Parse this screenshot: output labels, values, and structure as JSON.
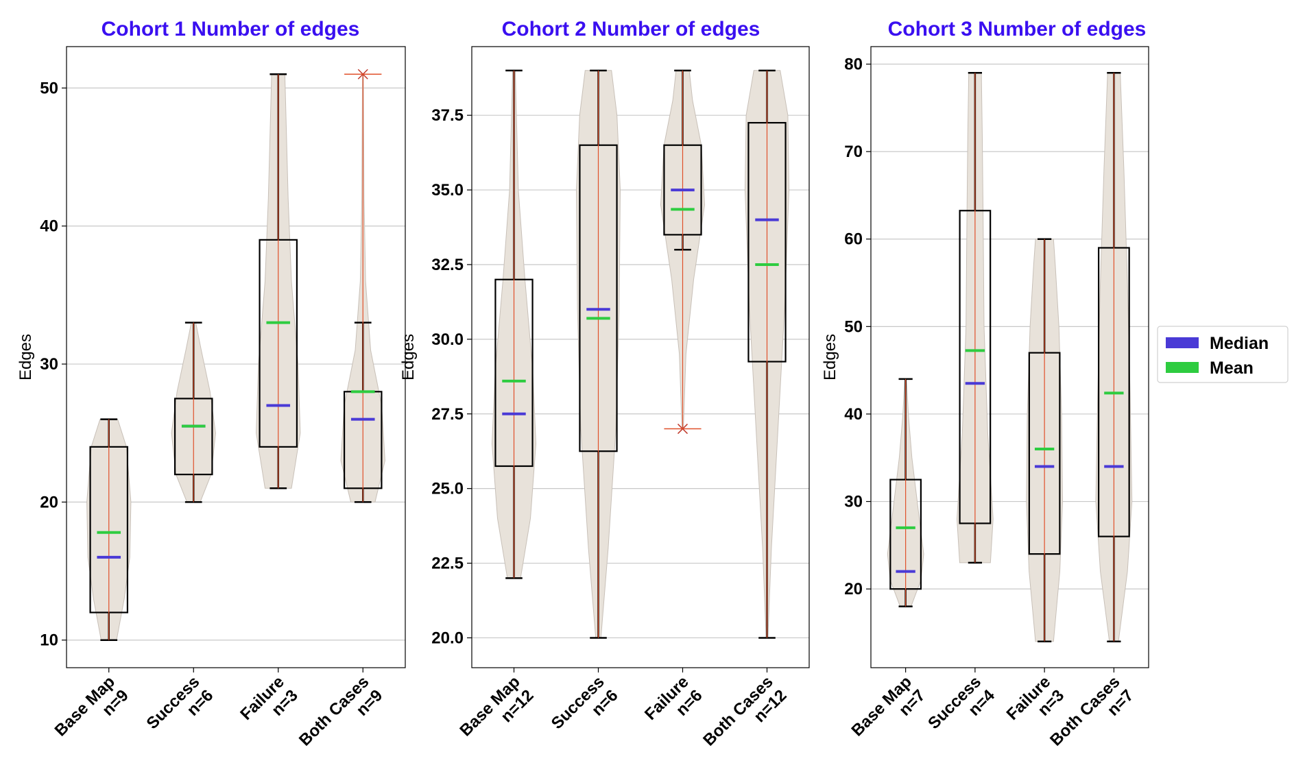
{
  "colors": {
    "title": "#3a0ff0",
    "violin_fill": "#e8e2da",
    "violin_edge": "#c8c0b8",
    "whisker_line": "#e0502a",
    "median": "#4a3ad6",
    "mean": "#2ecc40",
    "outlier": "#c0392b",
    "grid": "#c8c8c8"
  },
  "legend": {
    "items": [
      {
        "label": "Median",
        "color": "#4a3ad6"
      },
      {
        "label": "Mean",
        "color": "#2ecc40"
      }
    ]
  },
  "chart_data": [
    {
      "type": "violin-box",
      "title": "Cohort 1 Number of edges",
      "ylabel": "Edges",
      "ylim": [
        8,
        53
      ],
      "yticks": [
        10,
        20,
        30,
        40,
        50
      ],
      "ytick_labels": [
        "10",
        "20",
        "30",
        "40",
        "50"
      ],
      "grid": true,
      "categories": [
        {
          "line1": "Base Map",
          "line2": "n=9",
          "min": 10,
          "q1": 12,
          "median": 16,
          "q3": 24,
          "max": 26,
          "mean": 17.8,
          "whisker_low": 10,
          "whisker_high": 26,
          "outliers": [],
          "violin": [
            [
              10,
              0.35
            ],
            [
              13,
              0.7
            ],
            [
              16,
              0.95
            ],
            [
              20,
              1.0
            ],
            [
              24,
              0.8
            ],
            [
              26,
              0.4
            ]
          ]
        },
        {
          "line1": "Success",
          "line2": "n=6",
          "min": 20,
          "q1": 22,
          "median": 25.5,
          "q3": 27.5,
          "max": 33,
          "mean": 25.5,
          "whisker_low": 20,
          "whisker_high": 33,
          "outliers": [],
          "violin": [
            [
              20,
              0.3
            ],
            [
              22,
              0.8
            ],
            [
              25,
              1.0
            ],
            [
              28,
              0.75
            ],
            [
              31,
              0.35
            ],
            [
              33,
              0.1
            ]
          ]
        },
        {
          "line1": "Failure",
          "line2": "n=3",
          "min": 21,
          "q1": 24,
          "median": 27,
          "q3": 39,
          "max": 51,
          "mean": 33,
          "whisker_low": 21,
          "whisker_high": 51,
          "outliers": [],
          "violin": [
            [
              21,
              0.6
            ],
            [
              25,
              1.0
            ],
            [
              30,
              0.9
            ],
            [
              36,
              0.6
            ],
            [
              42,
              0.45
            ],
            [
              48,
              0.35
            ],
            [
              51,
              0.3
            ]
          ]
        },
        {
          "line1": "Both Cases",
          "line2": "n=9",
          "min": 20,
          "q1": 21,
          "median": 26,
          "q3": 28,
          "max": 51,
          "mean": 28,
          "whisker_low": 20,
          "whisker_high": 33,
          "outliers": [
            51
          ],
          "violin": [
            [
              20,
              0.55
            ],
            [
              23,
              1.0
            ],
            [
              27,
              0.85
            ],
            [
              31,
              0.35
            ],
            [
              36,
              0.12
            ],
            [
              42,
              0.05
            ],
            [
              51,
              0.02
            ]
          ]
        }
      ]
    },
    {
      "type": "violin-box",
      "title": "Cohort 2 Number of edges",
      "ylabel": "Edges",
      "ylim": [
        19,
        39.8
      ],
      "yticks": [
        20,
        22.5,
        25,
        27.5,
        30,
        32.5,
        35,
        37.5
      ],
      "ytick_labels": [
        "20.0",
        "22.5",
        "25.0",
        "27.5",
        "30.0",
        "32.5",
        "35.0",
        "37.5"
      ],
      "grid": true,
      "categories": [
        {
          "line1": "Base Map",
          "line2": "n=12",
          "min": 22,
          "q1": 25.75,
          "median": 27.5,
          "q3": 32,
          "max": 39,
          "mean": 28.6,
          "whisker_low": 22,
          "whisker_high": 39,
          "outliers": [],
          "violin": [
            [
              22,
              0.3
            ],
            [
              24,
              0.75
            ],
            [
              26.5,
              1.0
            ],
            [
              29,
              0.85
            ],
            [
              32,
              0.5
            ],
            [
              35,
              0.2
            ],
            [
              39,
              0.06
            ]
          ]
        },
        {
          "line1": "Success",
          "line2": "n=6",
          "min": 20,
          "q1": 26.25,
          "median": 31,
          "q3": 36.5,
          "max": 39,
          "mean": 30.7,
          "whisker_low": 20,
          "whisker_high": 39,
          "outliers": [],
          "violin": [
            [
              20,
              0.12
            ],
            [
              23,
              0.45
            ],
            [
              27,
              0.8
            ],
            [
              31,
              0.95
            ],
            [
              35,
              1.0
            ],
            [
              37.5,
              0.85
            ],
            [
              39,
              0.6
            ]
          ]
        },
        {
          "line1": "Failure",
          "line2": "n=6",
          "min": 27,
          "q1": 33.5,
          "median": 35,
          "q3": 36.5,
          "max": 39,
          "mean": 34.35,
          "whisker_low": 33,
          "whisker_high": 39,
          "outliers": [
            27
          ],
          "violin": [
            [
              27,
              0.03
            ],
            [
              29.5,
              0.15
            ],
            [
              32,
              0.5
            ],
            [
              34.5,
              1.0
            ],
            [
              36.5,
              0.85
            ],
            [
              38,
              0.45
            ],
            [
              39,
              0.3
            ]
          ]
        },
        {
          "line1": "Both Cases",
          "line2": "n=12",
          "min": 20,
          "q1": 29.25,
          "median": 34,
          "q3": 37.25,
          "max": 39,
          "mean": 32.5,
          "whisker_low": 20,
          "whisker_high": 39,
          "outliers": [],
          "violin": [
            [
              20,
              0.04
            ],
            [
              23,
              0.2
            ],
            [
              27,
              0.5
            ],
            [
              31,
              0.8
            ],
            [
              35,
              1.0
            ],
            [
              37.5,
              0.95
            ],
            [
              39,
              0.6
            ]
          ]
        }
      ]
    },
    {
      "type": "violin-box",
      "title": "Cohort 3 Number of edges",
      "ylabel": "Edges",
      "ylim": [
        11,
        82
      ],
      "yticks": [
        20,
        30,
        40,
        50,
        60,
        70,
        80
      ],
      "ytick_labels": [
        "20",
        "30",
        "40",
        "50",
        "60",
        "70",
        "80"
      ],
      "grid": true,
      "categories": [
        {
          "line1": "Base Map",
          "line2": "n=7",
          "min": 18,
          "q1": 20,
          "median": 22,
          "q3": 32.5,
          "max": 44,
          "mean": 27,
          "whisker_low": 18,
          "whisker_high": 44,
          "outliers": [],
          "violin": [
            [
              18,
              0.3
            ],
            [
              21,
              0.85
            ],
            [
              24,
              1.0
            ],
            [
              29,
              0.7
            ],
            [
              35,
              0.35
            ],
            [
              40,
              0.15
            ],
            [
              44,
              0.05
            ]
          ]
        },
        {
          "line1": "Success",
          "line2": "n=4",
          "min": 23,
          "q1": 27.5,
          "median": 43.5,
          "q3": 63.25,
          "max": 79,
          "mean": 47.25,
          "whisker_low": 23,
          "whisker_high": 79,
          "outliers": [],
          "violin": [
            [
              23,
              0.85
            ],
            [
              28,
              1.0
            ],
            [
              38,
              0.7
            ],
            [
              50,
              0.5
            ],
            [
              62,
              0.45
            ],
            [
              72,
              0.4
            ],
            [
              79,
              0.35
            ]
          ]
        },
        {
          "line1": "Failure",
          "line2": "n=3",
          "min": 14,
          "q1": 24,
          "median": 34,
          "q3": 47,
          "max": 60,
          "mean": 36,
          "whisker_low": 14,
          "whisker_high": 60,
          "outliers": [],
          "violin": [
            [
              14,
              0.5
            ],
            [
              22,
              0.85
            ],
            [
              30,
              1.0
            ],
            [
              40,
              0.95
            ],
            [
              50,
              0.8
            ],
            [
              57,
              0.6
            ],
            [
              60,
              0.5
            ]
          ]
        },
        {
          "line1": "Both Cases",
          "line2": "n=7",
          "min": 14,
          "q1": 26,
          "median": 34,
          "q3": 59,
          "max": 79,
          "mean": 42.4,
          "whisker_low": 14,
          "whisker_high": 79,
          "outliers": [],
          "violin": [
            [
              14,
              0.25
            ],
            [
              22,
              0.75
            ],
            [
              30,
              1.0
            ],
            [
              42,
              0.9
            ],
            [
              55,
              0.75
            ],
            [
              68,
              0.55
            ],
            [
              79,
              0.35
            ]
          ]
        }
      ]
    }
  ]
}
